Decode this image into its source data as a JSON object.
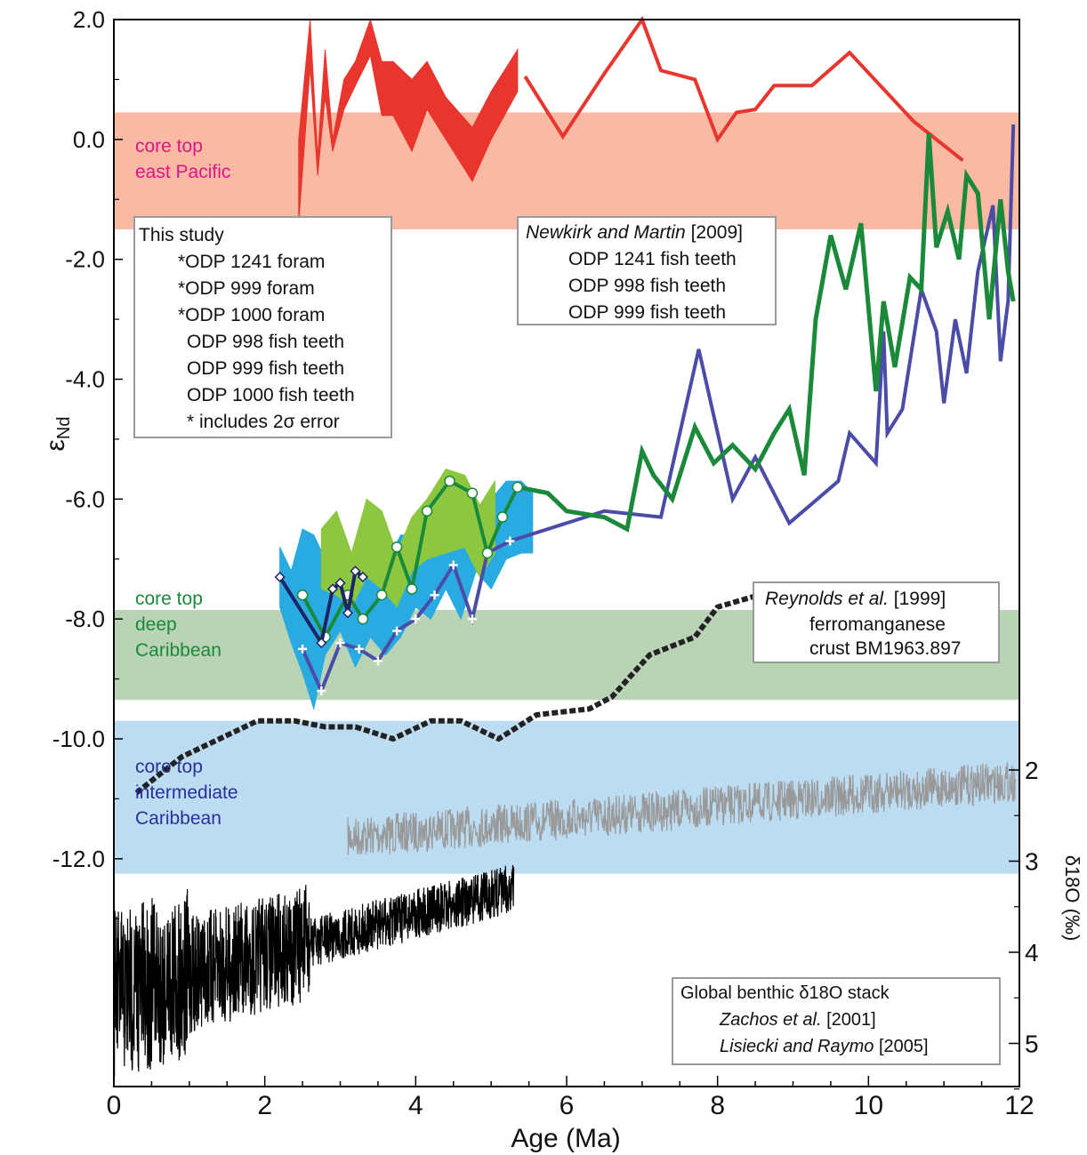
{
  "chart_data": {
    "type": "line",
    "title": "",
    "xlabel": "Age (Ma)",
    "ylabel_left": "εNd",
    "ylabel_right": "δ18O (‰)",
    "xlim": [
      0,
      12
    ],
    "ylim_left": [
      -15.8,
      2.0
    ],
    "ylim_right": [
      5.5,
      1.7
    ],
    "x_ticks": [
      "0",
      "2",
      "4",
      "6",
      "8",
      "10",
      "12"
    ],
    "y_ticks_left": [
      "2.0",
      "0.0",
      "-2.0",
      "-4.0",
      "-6.0",
      "-8.0",
      "-10.0",
      "-12.0"
    ],
    "y_ticks_right": [
      "2",
      "3",
      "4",
      "5"
    ],
    "bands": [
      {
        "label": "core top\neast Pacific",
        "ymin": -1.5,
        "ymax": 0.45,
        "color": "#f9b9a3",
        "text_color": "#e0158a"
      },
      {
        "label": "core top\ndeep\nCaribbean",
        "ymin": -9.35,
        "ymax": -7.85,
        "color": "#b9d3b5",
        "text_color": "#1a8a3a"
      },
      {
        "label": "core top\nintermediate\nCaribbean",
        "ymin": -12.25,
        "ymax": -9.7,
        "color": "#bcdcf2",
        "text_color": "#2b2f9e"
      }
    ],
    "legend_this_study": {
      "title": "This study",
      "entries": [
        "*ODP 1241 foram",
        "*ODP 999   foram",
        "*ODP 1000 foram",
        "ODP 998 fish teeth",
        "ODP 999 fish teeth",
        "ODP 1000 fish teeth"
      ],
      "note": "* includes 2σ error"
    },
    "legend_newkirk": {
      "title": "Newkirk and Martin",
      "year": "[2009]",
      "entries": [
        "ODP 1241 fish teeth",
        "ODP  998 fish teeth",
        "ODP  999 fish teeth"
      ]
    },
    "legend_reynolds": {
      "title": "Reynolds et al.",
      "year": "[1999]",
      "entry_line1": "ferromanganese",
      "entry_line2": "crust BM1963.897"
    },
    "legend_d18o": {
      "title": "Global benthic δ18O stack",
      "entries": [
        {
          "name": "Zachos et al.",
          "year": "[2001]"
        },
        {
          "name": "Lisiecki and Raymo",
          "year": "[2005]"
        }
      ]
    },
    "colors": {
      "odp1241": "#e8362f",
      "odp999_foram": "#8dc63f",
      "odp1000_foram": "#29aae1",
      "odp998": "#4b4ba8",
      "odp999": "#1a8a3a",
      "odp1000_teeth": "#1f2466",
      "reynolds": "#222222",
      "zachos": "#999999",
      "lisiecki": "#000000"
    },
    "series": [
      {
        "name": "*ODP 1241 foram",
        "type": "band",
        "x": [
          2.45,
          2.6,
          2.7,
          2.8,
          2.9,
          3.05,
          3.2,
          3.4,
          3.55,
          3.7,
          3.95,
          4.15,
          4.4,
          4.75,
          5.0,
          5.35
        ],
        "upper": [
          0.0,
          2.0,
          -0.3,
          1.5,
          0.0,
          1.0,
          1.3,
          2.0,
          1.3,
          1.3,
          1.0,
          1.3,
          0.7,
          0.2,
          0.8,
          1.5
        ],
        "lower": [
          -1.4,
          1.2,
          -0.6,
          0.7,
          -0.2,
          0.5,
          0.9,
          1.4,
          0.4,
          0.4,
          -0.2,
          0.5,
          0.0,
          -0.7,
          0.0,
          0.8
        ]
      },
      {
        "name": "*ODP 999 foram",
        "type": "band",
        "x": [
          2.75,
          2.95,
          3.15,
          3.35,
          3.55,
          3.75,
          3.95,
          4.15,
          4.4,
          4.65,
          4.85,
          5.05
        ],
        "upper": [
          -6.5,
          -6.2,
          -6.9,
          -6.0,
          -6.2,
          -6.9,
          -6.3,
          -6.0,
          -5.5,
          -5.6,
          -6.1,
          -5.7
        ],
        "lower": [
          -7.5,
          -7.6,
          -7.8,
          -7.3,
          -7.5,
          -7.8,
          -7.2,
          -7.0,
          -6.9,
          -6.8,
          -7.3,
          -6.9
        ]
      },
      {
        "name": "*ODP 1000 foram",
        "type": "band",
        "x": [
          2.2,
          2.35,
          2.5,
          2.65,
          2.8,
          3.0,
          3.2,
          3.4,
          3.6,
          3.8,
          4.0,
          4.2,
          4.4,
          4.6,
          4.8,
          5.0,
          5.2,
          5.4,
          5.55
        ],
        "upper": [
          -6.8,
          -7.2,
          -6.5,
          -6.6,
          -7.0,
          -6.6,
          -7.1,
          -6.8,
          -7.1,
          -6.6,
          -6.6,
          -6.4,
          -6.4,
          -6.3,
          -6.3,
          -6.0,
          -5.7,
          -5.7,
          -5.9
        ],
        "lower": [
          -7.8,
          -8.4,
          -8.9,
          -9.5,
          -8.6,
          -8.2,
          -8.8,
          -8.3,
          -8.6,
          -8.3,
          -7.8,
          -8.0,
          -7.5,
          -8.0,
          -7.2,
          -7.5,
          -7.0,
          -6.9,
          -6.9
        ]
      },
      {
        "name": "ODP 998 fish teeth",
        "type": "line-marker",
        "x": [
          2.5,
          2.75,
          3.0,
          3.25,
          3.5,
          3.75,
          4.0,
          4.25,
          4.5,
          4.75,
          4.95,
          5.25
        ],
        "y": [
          -8.5,
          -9.2,
          -8.4,
          -8.5,
          -8.7,
          -8.2,
          -8.0,
          -7.6,
          -7.1,
          -8.0,
          -6.9,
          -6.7
        ]
      },
      {
        "name": "ODP 999 fish teeth",
        "type": "line-marker",
        "x": [
          2.5,
          2.8,
          3.1,
          3.3,
          3.55,
          3.75,
          3.95,
          4.15,
          4.45,
          4.75,
          4.95,
          5.15,
          5.35
        ],
        "y": [
          -7.6,
          -8.3,
          -7.6,
          -8.0,
          -7.6,
          -6.8,
          -7.5,
          -6.2,
          -5.7,
          -5.9,
          -6.9,
          -6.3,
          -5.8
        ]
      },
      {
        "name": "ODP 1000 fish teeth",
        "type": "line-marker",
        "x": [
          2.2,
          2.75,
          2.9,
          3.0,
          3.1,
          3.2,
          3.3
        ],
        "y": [
          -7.3,
          -8.4,
          -7.5,
          -7.4,
          -7.9,
          -7.2,
          -7.3
        ]
      },
      {
        "name": "ODP 1241 fish teeth",
        "type": "line",
        "x": [
          5.45,
          5.95,
          6.5,
          7.0,
          7.25,
          7.7,
          8.0,
          8.25,
          8.5,
          8.75,
          9.0,
          9.25,
          9.75,
          10.6,
          11.25
        ],
        "y": [
          1.05,
          0.05,
          1.1,
          2.0,
          1.15,
          1.0,
          0.0,
          0.45,
          0.5,
          0.9,
          0.9,
          0.9,
          1.45,
          0.3,
          -0.35
        ]
      },
      {
        "name": "ODP 998 fish teeth (Newkirk)",
        "type": "line",
        "x": [
          5.25,
          6.5,
          7.25,
          7.75,
          8.2,
          8.5,
          8.95,
          9.6,
          9.75,
          10.1,
          10.2,
          10.25,
          10.45,
          10.7,
          10.9,
          11.0,
          11.15,
          11.3,
          11.45,
          11.65,
          11.75,
          11.85,
          11.92
        ],
        "y": [
          -6.7,
          -6.2,
          -6.3,
          -3.5,
          -6.0,
          -5.3,
          -6.4,
          -5.7,
          -4.9,
          -5.4,
          -3.2,
          -4.9,
          -4.5,
          -2.5,
          -3.2,
          -4.4,
          -3.0,
          -3.9,
          -2.2,
          -1.1,
          -3.7,
          -2.7,
          0.25
        ]
      },
      {
        "name": "ODP 999 fish teeth (Newkirk)",
        "type": "line",
        "x": [
          5.35,
          5.75,
          6.0,
          6.5,
          6.8,
          7.0,
          7.15,
          7.4,
          7.7,
          7.95,
          8.2,
          8.5,
          8.75,
          8.95,
          9.15,
          9.3,
          9.5,
          9.7,
          9.9,
          10.1,
          10.2,
          10.35,
          10.55,
          10.7,
          10.8,
          10.9,
          11.05,
          11.2,
          11.3,
          11.45,
          11.6,
          11.75,
          11.85,
          11.92
        ],
        "y": [
          -5.8,
          -5.9,
          -6.2,
          -6.3,
          -6.5,
          -5.2,
          -5.6,
          -6.0,
          -4.8,
          -5.4,
          -5.1,
          -5.5,
          -4.9,
          -4.5,
          -5.6,
          -3.0,
          -1.6,
          -2.5,
          -1.4,
          -4.2,
          -2.7,
          -3.8,
          -2.3,
          -2.5,
          0.1,
          -1.8,
          -1.2,
          -2.0,
          -0.6,
          -0.9,
          -3.0,
          -1.0,
          -2.2,
          -2.7
        ]
      },
      {
        "name": "ferromanganese crust BM1963.897",
        "type": "dashed-line",
        "x": [
          0.3,
          0.9,
          1.9,
          2.4,
          2.8,
          3.2,
          3.7,
          4.2,
          4.6,
          5.1,
          5.6,
          6.3,
          6.6,
          7.1,
          7.7,
          8.0,
          8.55
        ],
        "y": [
          -10.9,
          -10.3,
          -9.7,
          -9.7,
          -9.8,
          -9.8,
          -10.0,
          -9.7,
          -9.7,
          -10.0,
          -9.6,
          -9.5,
          -9.3,
          -8.6,
          -8.3,
          -7.8,
          -7.6
        ]
      }
    ]
  }
}
